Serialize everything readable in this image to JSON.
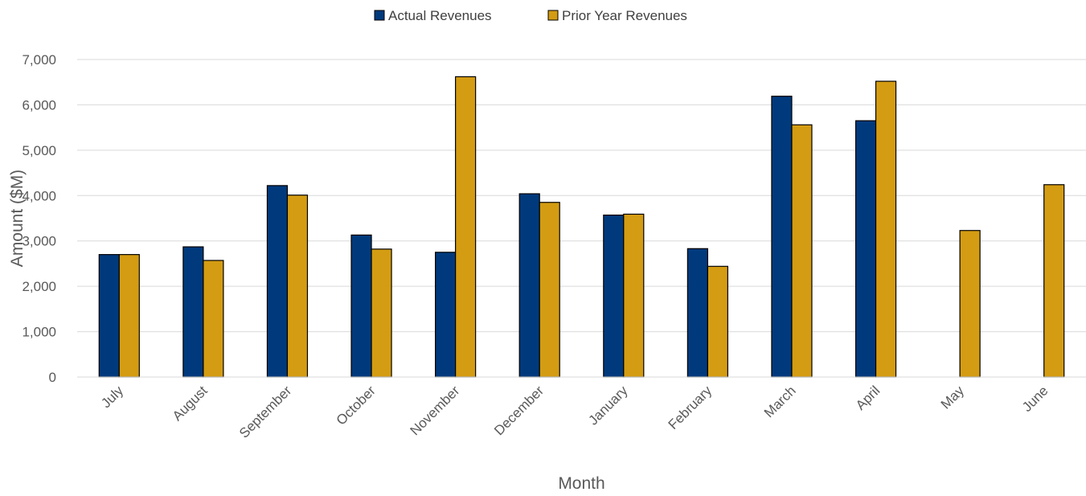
{
  "chart_data": {
    "type": "bar",
    "title": "",
    "xlabel": "Month",
    "ylabel": "Amount ($M)",
    "ylim": [
      0,
      7000
    ],
    "yticks": [
      0,
      1000,
      2000,
      3000,
      4000,
      5000,
      6000,
      7000
    ],
    "ytick_labels": [
      "0",
      "1,000",
      "2,000",
      "3,000",
      "4,000",
      "5,000",
      "6,000",
      "7,000"
    ],
    "grid": "horizontal",
    "legend_position": "top-center",
    "categories": [
      "July",
      "August",
      "September",
      "October",
      "November",
      "December",
      "January",
      "February",
      "March",
      "April",
      "May",
      "June"
    ],
    "series": [
      {
        "name": "Actual Revenues",
        "color": "#003a7d",
        "values": [
          2700,
          2870,
          4220,
          3130,
          2750,
          4040,
          3570,
          2830,
          6190,
          5650,
          null,
          null
        ]
      },
      {
        "name": "Prior Year Revenues",
        "color": "#d49c12",
        "values": [
          2700,
          2570,
          4010,
          2820,
          6620,
          3850,
          3590,
          2440,
          5560,
          6520,
          3230,
          4240
        ]
      }
    ]
  }
}
